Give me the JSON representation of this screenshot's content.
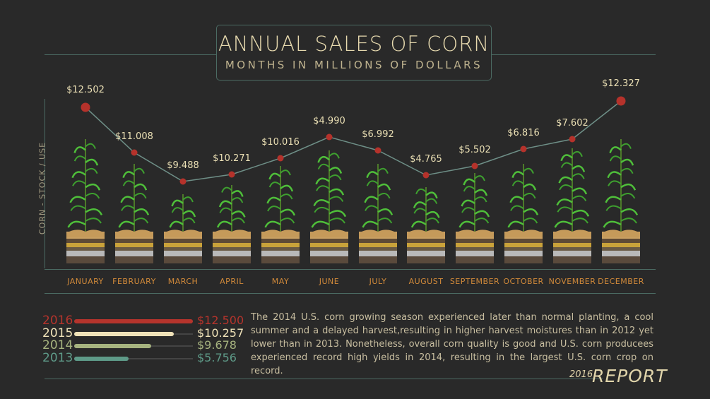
{
  "title": "ANNUAL SALES OF CORN",
  "subtitle": "MONTHS IN MILLIONS OF DOLLARS",
  "y_axis_label": "CORN - STOCK / USE",
  "chart_data": {
    "type": "line",
    "title": "ANNUAL SALES OF CORN",
    "subtitle": "MONTHS IN MILLIONS OF DOLLARS",
    "ylabel": "CORN - STOCK / USE",
    "categories": [
      "JANUARY",
      "FEBRUARY",
      "MARCH",
      "APRIL",
      "MAY",
      "JUNE",
      "JULY",
      "AUGUST",
      "SEPTEMBER",
      "OCTOBER",
      "NOVEMBER",
      "DECEMBER"
    ],
    "labels": [
      "$12.502",
      "$11.008",
      "$9.488",
      "$10.271",
      "$10.016",
      "$4.990",
      "$6.992",
      "$4.765",
      "$5.502",
      "$6.816",
      "$7.602",
      "$12.327"
    ],
    "values": [
      12.502,
      11.008,
      9.488,
      10.271,
      10.016,
      4.99,
      6.992,
      4.765,
      5.502,
      6.816,
      7.602,
      12.327
    ],
    "colors": {
      "line": "#6e8f87",
      "point": "#b5322b",
      "month": "#d18a3a"
    }
  },
  "legend": [
    {
      "year": "2016",
      "value": "$12.500",
      "fill": 1.0,
      "color": "#b5342c"
    },
    {
      "year": "2015",
      "value": "$10.257",
      "fill": 0.84,
      "color": "#efe2b8"
    },
    {
      "year": "2014",
      "value": "$9.678",
      "fill": 0.65,
      "color": "#a6b37f"
    },
    {
      "year": "2013",
      "value": "$5.756",
      "fill": 0.46,
      "color": "#5e9a88"
    }
  ],
  "description": "The 2014 U.S. corn growing season experienced later than normal planting, a cool summer and a delayed harvest,resulting in higher harvest moistures than in 2012 yet lower than in 2013. Nonetheless, overall corn quality is good and U.S. corn producees experienced record high yields in 2014, resulting in the largest U.S. corn crop on record.",
  "report": {
    "year": "2016",
    "label": "REPORT"
  }
}
